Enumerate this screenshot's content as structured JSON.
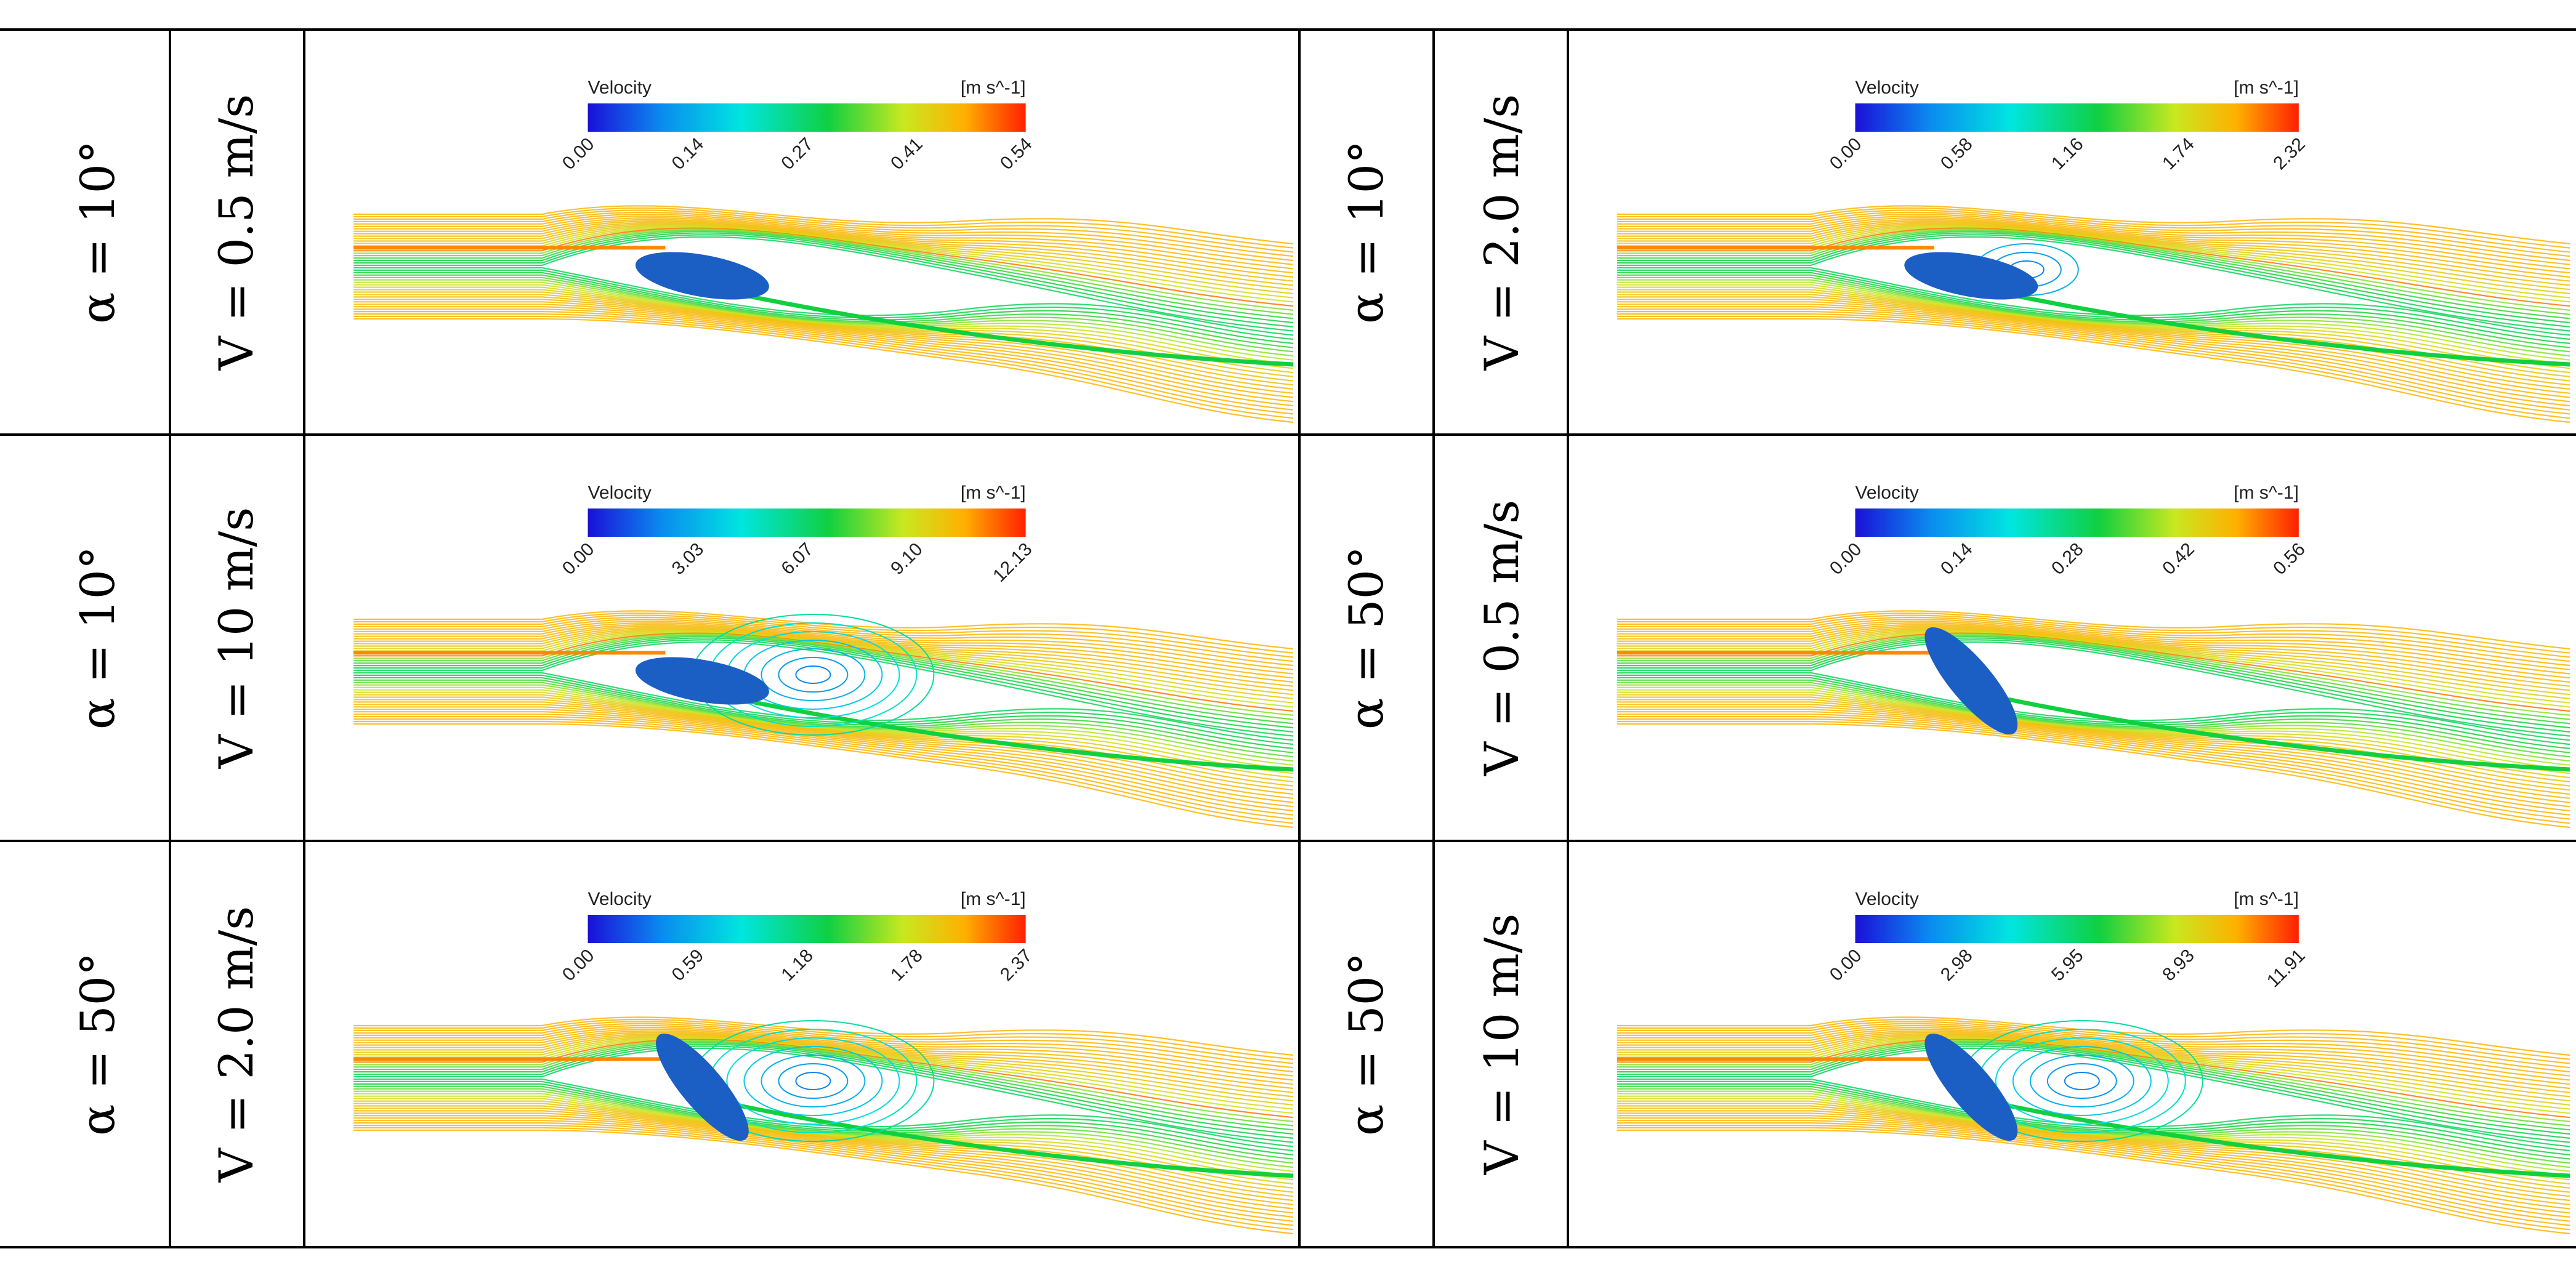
{
  "table": {
    "rows": [
      [
        {
          "alpha": "α = 10°",
          "velocity": "V = 0.5 m/s",
          "colorbar": {
            "title": "Velocity",
            "unit": "[m s^-1]",
            "ticks": [
              "0.00",
              "0.14",
              "0.27",
              "0.41",
              "0.54"
            ]
          },
          "flow": {
            "angle_deg": 10,
            "separation": "attached"
          }
        },
        {
          "alpha": "α = 10°",
          "velocity": "V = 2.0 m/s",
          "colorbar": {
            "title": "Velocity",
            "unit": "[m s^-1]",
            "ticks": [
              "0.00",
              "0.58",
              "1.16",
              "1.74",
              "2.32"
            ]
          },
          "flow": {
            "angle_deg": 10,
            "separation": "small"
          }
        }
      ],
      [
        {
          "alpha": "α = 10°",
          "velocity": "V = 10 m/s",
          "colorbar": {
            "title": "Velocity",
            "unit": "[m s^-1]",
            "ticks": [
              "0.00",
              "3.03",
              "6.07",
              "9.10",
              "12.13"
            ]
          },
          "flow": {
            "angle_deg": 10,
            "separation": "wake"
          }
        },
        {
          "alpha": "α = 50°",
          "velocity": "V = 0.5 m/s",
          "colorbar": {
            "title": "Velocity",
            "unit": "[m s^-1]",
            "ticks": [
              "0.00",
              "0.14",
              "0.28",
              "0.42",
              "0.56"
            ]
          },
          "flow": {
            "angle_deg": 50,
            "separation": "attached"
          }
        }
      ],
      [
        {
          "alpha": "α = 50°",
          "velocity": "V = 2.0 m/s",
          "colorbar": {
            "title": "Velocity",
            "unit": "[m s^-1]",
            "ticks": [
              "0.00",
              "0.59",
              "1.18",
              "1.78",
              "2.37"
            ]
          },
          "flow": {
            "angle_deg": 50,
            "separation": "vortex"
          }
        },
        {
          "alpha": "α = 50°",
          "velocity": "V = 10 m/s",
          "colorbar": {
            "title": "Velocity",
            "unit": "[m s^-1]",
            "ticks": [
              "0.00",
              "2.98",
              "5.95",
              "8.93",
              "11.91"
            ]
          },
          "flow": {
            "angle_deg": 50,
            "separation": "strong-vortex"
          }
        }
      ]
    ]
  },
  "colors": {
    "rule": "#000000",
    "ellipse": "#1c5fc4",
    "gradient": [
      "#1a10d8",
      "#0a8cf0",
      "#00e5e0",
      "#10d040",
      "#c8e820",
      "#ffb000",
      "#ff2000"
    ]
  }
}
